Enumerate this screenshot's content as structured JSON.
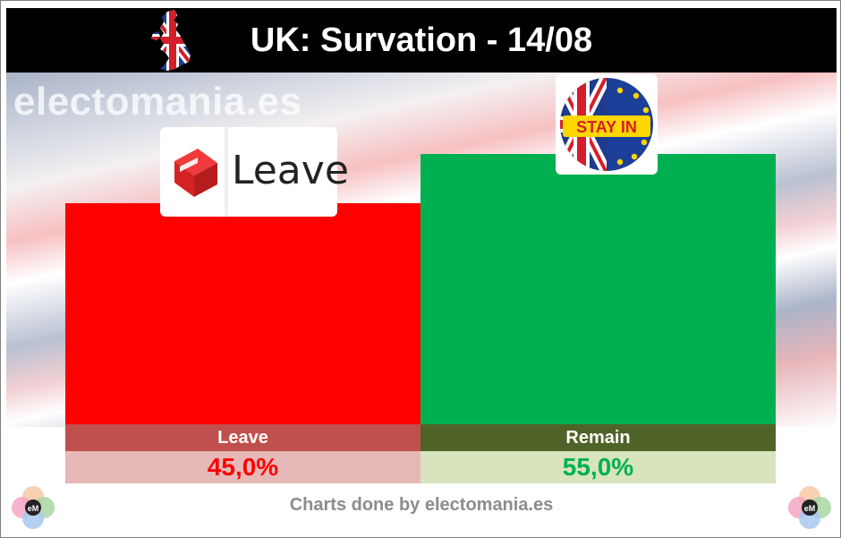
{
  "header": {
    "title": "UK: Survation - 14/08"
  },
  "watermark": "electomania.es",
  "footer": {
    "credit": "Charts done by electomania.es"
  },
  "logos": {
    "leave_text": "Leave",
    "remain_text": "STAY IN"
  },
  "colors": {
    "leave_bar": "#ff0000",
    "remain_bar": "#00b050",
    "leave_label_bg": "#c0504d",
    "remain_label_bg": "#4f6228",
    "leave_value_bg": "#e6b9b8",
    "remain_value_bg": "#d7e4bd",
    "leave_value_text": "#ff0000",
    "remain_value_text": "#00b050"
  },
  "chart_data": {
    "type": "bar",
    "categories": [
      "Leave",
      "Remain"
    ],
    "values": [
      45.0,
      55.0
    ],
    "value_labels": [
      "45,0%",
      "55,0%"
    ],
    "ylim": [
      0,
      60
    ],
    "grid": false,
    "legend": "none"
  }
}
